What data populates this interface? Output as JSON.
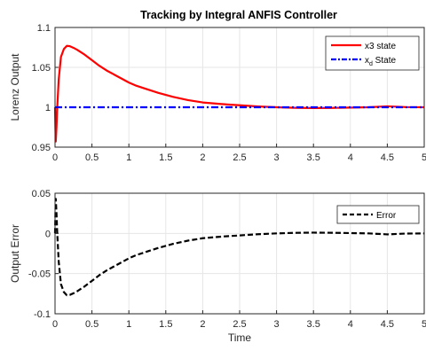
{
  "chart_data": [
    {
      "type": "line",
      "title": "Tracking by Integral ANFIS Controller",
      "xlabel": "",
      "ylabel": "Lorenz Output",
      "xlim": [
        0,
        5
      ],
      "ylim": [
        0.95,
        1.1
      ],
      "xticks": [
        "0",
        "0.5",
        "1",
        "1.5",
        "2",
        "2.5",
        "3",
        "3.5",
        "4",
        "4.5",
        "5"
      ],
      "yticks": [
        "0.95",
        "1",
        "1.05",
        "1.1"
      ],
      "grid": true,
      "legend_position": "top-right",
      "series": [
        {
          "name": "x3 state",
          "color": "#ff0000",
          "style": "solid",
          "x": [
            0,
            0.005,
            0.01,
            0.02,
            0.03,
            0.05,
            0.08,
            0.12,
            0.16,
            0.2,
            0.25,
            0.3,
            0.4,
            0.5,
            0.6,
            0.7,
            0.8,
            0.9,
            1.0,
            1.1,
            1.2,
            1.4,
            1.6,
            1.8,
            2.0,
            2.25,
            2.5,
            2.75,
            3.0,
            3.25,
            3.5,
            3.75,
            4.0,
            4.25,
            4.5,
            4.75,
            5.0
          ],
          "y": [
            1.0,
            0.975,
            0.957,
            0.975,
            1.0,
            1.035,
            1.063,
            1.073,
            1.077,
            1.0765,
            1.0745,
            1.072,
            1.066,
            1.059,
            1.052,
            1.046,
            1.041,
            1.036,
            1.031,
            1.027,
            1.024,
            1.018,
            1.013,
            1.009,
            1.006,
            1.004,
            1.0025,
            1.001,
            1.0,
            0.9993,
            0.999,
            0.9992,
            0.9996,
            1.0,
            1.0012,
            1.0002,
            1.0
          ]
        },
        {
          "name_main": "x",
          "name_sub": "d",
          "name_rest": " State",
          "color": "#0000ff",
          "style": "dashdot",
          "x": [
            0,
            5
          ],
          "y": [
            1.0,
            1.0
          ]
        }
      ]
    },
    {
      "type": "line",
      "title": "",
      "xlabel": "Time",
      "ylabel": "Output Error",
      "xlim": [
        0,
        5
      ],
      "ylim": [
        -0.1,
        0.05
      ],
      "xticks": [
        "0",
        "0.5",
        "1",
        "1.5",
        "2",
        "2.5",
        "3",
        "3.5",
        "4",
        "4.5",
        "5"
      ],
      "yticks": [
        "-0.1",
        "-0.05",
        "0",
        "0.05"
      ],
      "grid": true,
      "legend_position": "top-right",
      "series": [
        {
          "name": "Error",
          "color": "#000000",
          "style": "dashed",
          "x": [
            0,
            0.005,
            0.01,
            0.02,
            0.03,
            0.05,
            0.08,
            0.12,
            0.16,
            0.2,
            0.25,
            0.3,
            0.4,
            0.5,
            0.6,
            0.7,
            0.8,
            0.9,
            1.0,
            1.1,
            1.2,
            1.4,
            1.6,
            1.8,
            2.0,
            2.25,
            2.5,
            2.75,
            3.0,
            3.25,
            3.5,
            3.75,
            4.0,
            4.25,
            4.5,
            4.75,
            5.0
          ],
          "y": [
            0.0,
            0.025,
            0.043,
            0.025,
            0.0,
            -0.035,
            -0.063,
            -0.073,
            -0.077,
            -0.0765,
            -0.0745,
            -0.072,
            -0.066,
            -0.059,
            -0.052,
            -0.046,
            -0.041,
            -0.036,
            -0.031,
            -0.027,
            -0.024,
            -0.018,
            -0.013,
            -0.009,
            -0.006,
            -0.004,
            -0.0025,
            -0.001,
            0.0,
            0.0007,
            0.001,
            0.0008,
            0.0004,
            0.0,
            -0.0012,
            -0.0002,
            0.0
          ]
        }
      ]
    }
  ]
}
